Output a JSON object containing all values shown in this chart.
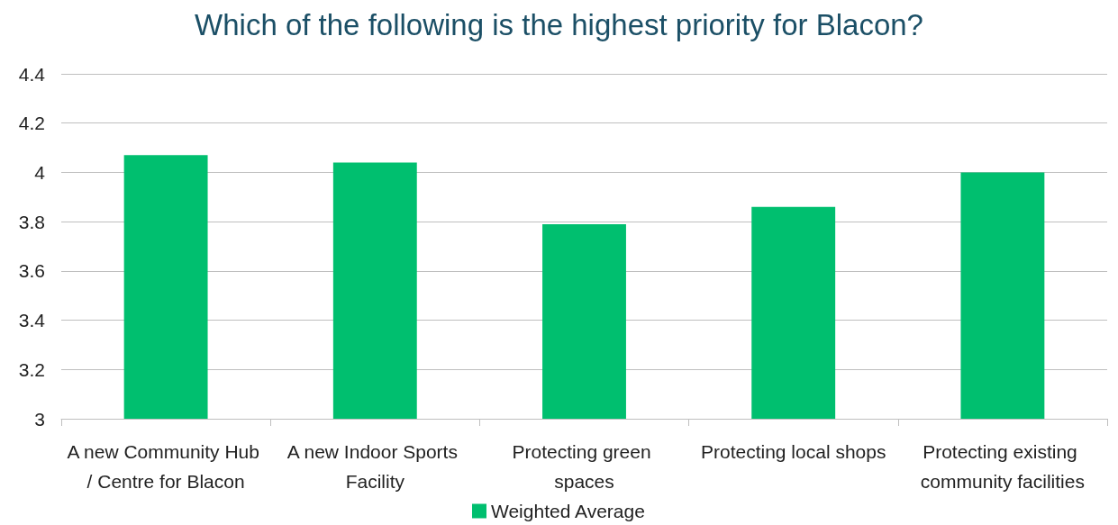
{
  "chart_data": {
    "type": "bar",
    "title": "Which of the following is the highest priority for Blacon?",
    "categories": [
      "A new Community Hub / Centre for Blacon",
      "A new Indoor Sports Facility",
      "Protecting green spaces",
      "Protecting local shops",
      "Protecting existing community facilities"
    ],
    "series": [
      {
        "name": "Weighted Average",
        "color": "#00bf6f",
        "values": [
          4.07,
          4.04,
          3.79,
          3.86,
          4.0
        ]
      }
    ],
    "ylim": [
      3,
      4.4
    ],
    "yticks": [
      3,
      3.2,
      3.4,
      3.6,
      3.8,
      4,
      4.2,
      4.4
    ],
    "grid": "y",
    "legend": "bottom"
  }
}
